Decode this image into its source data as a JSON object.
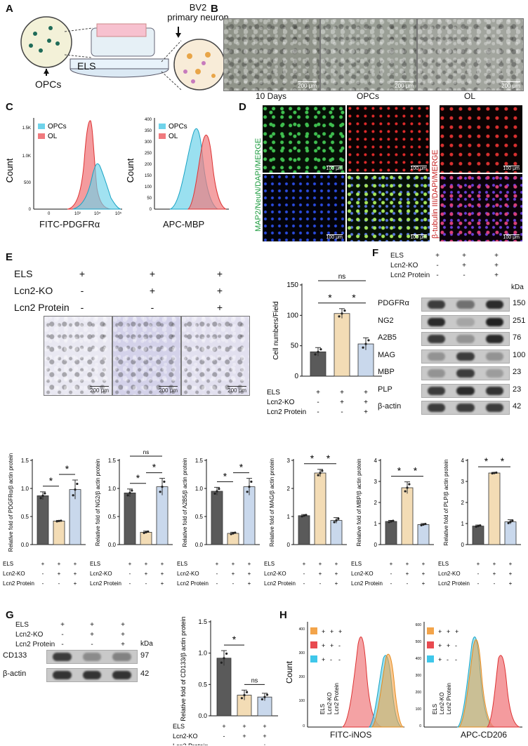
{
  "panels": {
    "A": "A",
    "B": "B",
    "C": "C",
    "D": "D",
    "E": "E",
    "F": "F",
    "G": "G",
    "H": "H"
  },
  "panelA": {
    "els": "ELS",
    "opcs": "OPCs",
    "bv2": "BV2",
    "primary_neuron": "primary neuron"
  },
  "panelB": {
    "captions": [
      "10 Days",
      "OPCs",
      "OL"
    ],
    "scale": "200 μm"
  },
  "panelC": {
    "hist1": {
      "xlabel": "FITC-PDGFRα",
      "ylabel": "Count",
      "legend": [
        "OPCs",
        "OL"
      ],
      "yticks": [
        "1.5K",
        "1.0K",
        "500",
        "0"
      ]
    },
    "hist2": {
      "xlabel": "APC-MBP",
      "ylabel": "Count",
      "legend": [
        "OPCs",
        "OL"
      ],
      "yticks": [
        "400",
        "350",
        "300",
        "250",
        "200",
        "150",
        "100",
        "50",
        "0"
      ]
    },
    "xticks": [
      "0",
      "10³",
      "10⁴",
      "10⁵"
    ]
  },
  "panelD": {
    "label_left": "MAP2/NeuN/DAPI/MERGE",
    "label_right": "β-tubulin III/DAPI/MERGE",
    "scale": "100 μm"
  },
  "treatments": {
    "row_labels": [
      "ELS",
      "Lcn2-KO",
      "Lcn2 Protein"
    ],
    "signs": [
      [
        "+",
        "+",
        "+"
      ],
      [
        "-",
        "+",
        "+"
      ],
      [
        "-",
        "-",
        "+"
      ]
    ]
  },
  "panelE": {
    "scale": "200 μm"
  },
  "colors": {
    "ctrl": "#5a5a5a",
    "ko": "#f3dcb5",
    "prot": "#c9d8ec",
    "opcs": "#5ec8e0",
    "ol": "#e8696d"
  },
  "panelF": {
    "kda": "kDa",
    "proteins": [
      "PDGFRα",
      "NG2",
      "A2B5",
      "MAG",
      "MBP",
      "PLP",
      "β-actin"
    ],
    "weights": [
      "150",
      "251",
      "76",
      "100",
      "23",
      "23",
      "42"
    ]
  },
  "panelG": {
    "kda": "kDa",
    "proteins": [
      "CD133",
      "β-actin"
    ],
    "weights": [
      "97",
      "42"
    ]
  },
  "panelH": {
    "ylabel": "Count",
    "xlabel1": "FITC-iNOS",
    "xlabel2": "APC-CD206",
    "legend_rows": [
      [
        "+",
        "+",
        "+"
      ],
      [
        "+",
        "+",
        "-"
      ],
      [
        "+",
        "-",
        "-"
      ]
    ],
    "legend_cols": [
      "ELS",
      "Lcn2-KO",
      "Lcn2 Protein"
    ],
    "yticks1": [
      "400",
      "300",
      "200",
      "100",
      "0"
    ],
    "yticks2": [
      "600",
      "500",
      "400",
      "300",
      "200",
      "100",
      "0"
    ]
  },
  "chart_data": [
    {
      "type": "bar",
      "id": "E",
      "categories": [
        "ELS",
        "ELS+Lcn2-KO",
        "ELS+Lcn2-KO+Lcn2 Protein"
      ],
      "values": [
        40,
        103,
        53
      ],
      "errors": [
        7,
        8,
        10
      ],
      "ylabel": "Cell numbers/Field",
      "ylim": [
        0,
        150
      ],
      "yticks": [
        0,
        50,
        100,
        150
      ],
      "sig": [
        [
          "*",
          "0-1"
        ],
        [
          "*",
          "1-2"
        ],
        [
          "ns",
          "0-2"
        ]
      ]
    },
    {
      "type": "bar",
      "id": "PDGFRa",
      "values": [
        0.87,
        0.42,
        0.98
      ],
      "errors": [
        0.07,
        0.01,
        0.17
      ],
      "ylabel": "Relative fold of PDGFRα/β actin protein",
      "ylim": [
        0,
        1.5
      ],
      "yticks": [
        0.0,
        0.5,
        1.0,
        1.5
      ],
      "sig": [
        [
          "*",
          "0-1"
        ],
        [
          "*",
          "1-2"
        ]
      ]
    },
    {
      "type": "bar",
      "id": "NG2",
      "values": [
        0.92,
        0.22,
        1.03
      ],
      "errors": [
        0.07,
        0.02,
        0.15
      ],
      "ylabel": "Relative fold of NG2/β actin protein",
      "ylim": [
        0,
        1.5
      ],
      "yticks": [
        0.0,
        0.5,
        1.0,
        1.5
      ],
      "sig": [
        [
          "*",
          "0-1"
        ],
        [
          "*",
          "1-2"
        ],
        [
          "ns",
          "0-2"
        ]
      ]
    },
    {
      "type": "bar",
      "id": "A2B5",
      "values": [
        0.95,
        0.2,
        1.03
      ],
      "errors": [
        0.07,
        0.02,
        0.15
      ],
      "ylabel": "Relative fold of A2B5/β actin protein",
      "ylim": [
        0,
        1.5
      ],
      "yticks": [
        0.0,
        0.5,
        1.0,
        1.5
      ],
      "sig": [
        [
          "*",
          "0-1"
        ],
        [
          "*",
          "1-2"
        ]
      ]
    },
    {
      "type": "bar",
      "id": "MAG",
      "values": [
        1.03,
        2.55,
        0.86
      ],
      "errors": [
        0.04,
        0.13,
        0.1
      ],
      "ylabel": "Relative fold of MAG/β actin protein",
      "ylim": [
        0,
        3
      ],
      "yticks": [
        0,
        1,
        2,
        3
      ],
      "sig": [
        [
          "*",
          "0-1"
        ],
        [
          "*",
          "1-2"
        ]
      ]
    },
    {
      "type": "bar",
      "id": "MBP",
      "values": [
        1.1,
        2.7,
        0.95
      ],
      "errors": [
        0.05,
        0.28,
        0.05
      ],
      "ylabel": "Relative fold of MBP/β actin protein",
      "ylim": [
        0,
        4
      ],
      "yticks": [
        0,
        1,
        2,
        3,
        4
      ],
      "sig": [
        [
          "*",
          "0-1"
        ],
        [
          "*",
          "1-2"
        ]
      ]
    },
    {
      "type": "bar",
      "id": "PLP",
      "values": [
        0.88,
        3.4,
        1.08
      ],
      "errors": [
        0.05,
        0.03,
        0.1
      ],
      "ylabel": "Relative fold of PLP/β actin protein",
      "ylim": [
        0,
        4
      ],
      "yticks": [
        0,
        1,
        2,
        3,
        4
      ],
      "sig": [
        [
          "*",
          "0-1"
        ],
        [
          "*",
          "1-2"
        ]
      ]
    },
    {
      "type": "bar",
      "id": "CD133",
      "values": [
        0.92,
        0.33,
        0.3
      ],
      "errors": [
        0.12,
        0.08,
        0.06
      ],
      "ylabel": "Relative fold of CD133/β actin protein",
      "ylim": [
        0,
        1.5
      ],
      "yticks": [
        0.0,
        0.5,
        1.0,
        1.5
      ],
      "sig": [
        [
          "*",
          "0-1"
        ],
        [
          "ns",
          "1-2"
        ]
      ]
    }
  ]
}
